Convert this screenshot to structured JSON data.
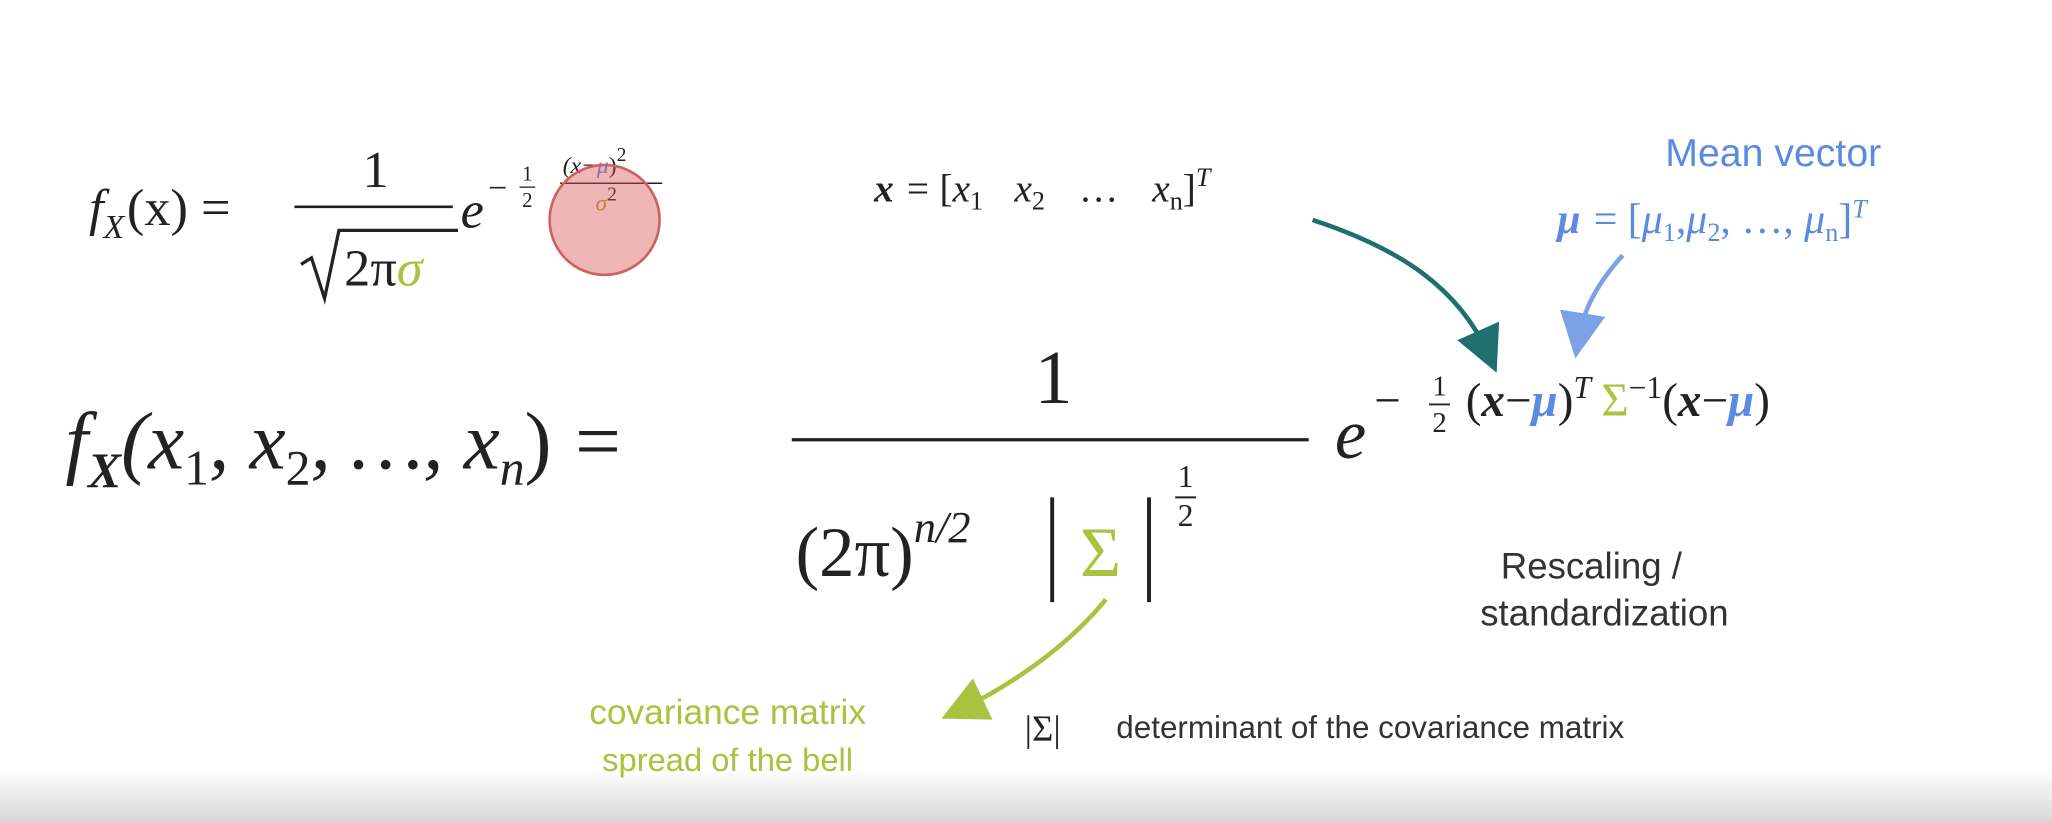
{
  "formula_1d": {
    "f": "f",
    "sub": "X",
    "arg": "(x)",
    "eq": "=",
    "num": "1",
    "root": "2π",
    "sigma": "σ",
    "e": "e",
    "minus": "−",
    "half_num": "1",
    "half_den": "2",
    "exp_num_open": "(x−",
    "exp_mu": "μ",
    "exp_num_close": ")",
    "exp_num_pow": "2",
    "exp_den": "σ",
    "exp_den_pow": "2"
  },
  "vector_x": {
    "x": "x",
    "eq": "=",
    "open": "[",
    "x1": "x",
    "s1": "1",
    "x2": "x",
    "s2": "2",
    "dots": "…",
    "xn": "x",
    "sn": "n",
    "close": "]",
    "T": "T"
  },
  "mean_vector": {
    "label": "Mean vector",
    "mu": "μ",
    "eq": "=",
    "open": "[",
    "mu1": "μ",
    "s1": "1",
    "comma1": ",",
    "mu2": "μ",
    "s2": "2",
    "rest": ", …, ",
    "mun": "μ",
    "sn": "n",
    "close": "]",
    "T": "T"
  },
  "formula_nd": {
    "f": "f",
    "sub": "X",
    "args_open": "(x",
    "s1": "1",
    "sep1": ", x",
    "s2": "2",
    "sep2": ", …, x",
    "sn": "n",
    "args_close": ")",
    "eq": "=",
    "num": "1",
    "den_base": "(2π)",
    "den_pow": "n/2",
    "sigma": "Σ",
    "det_pow_num": "1",
    "det_pow_den": "2",
    "e": "e",
    "minus": "−",
    "half_num": "1",
    "half_den": "2",
    "open1": "(",
    "x1": "x",
    "minus1": "−",
    "mu1": "μ",
    "close1": ")",
    "T": "T",
    "Sigma": "Σ",
    "inv": "−1",
    "open2": "(",
    "x2": "x",
    "minus2": "−",
    "mu2": "μ",
    "close2": ")"
  },
  "rescaling": [
    "Rescaling /",
    "standardization"
  ],
  "covariance": [
    "covariance matrix",
    "spread of the bell"
  ],
  "determinant": {
    "symbol": "|Σ|",
    "text": "determinant of the covariance matrix"
  }
}
